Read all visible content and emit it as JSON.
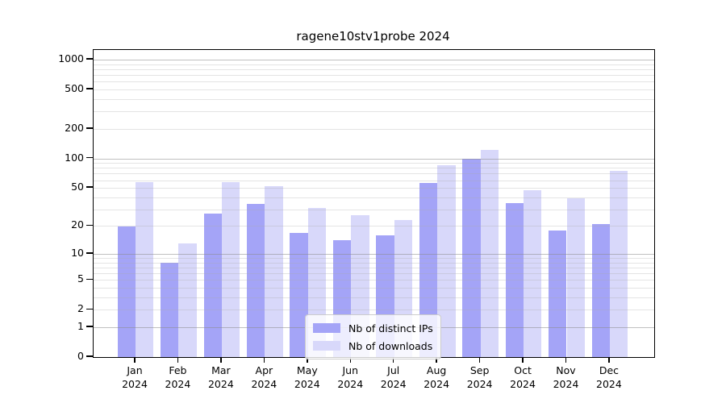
{
  "title": "ragene10stv1probe 2024",
  "chart_data": {
    "type": "bar",
    "title": "ragene10stv1probe 2024",
    "categories": [
      "Jan",
      "Feb",
      "Mar",
      "Apr",
      "May",
      "Jun",
      "Jul",
      "Aug",
      "Sep",
      "Oct",
      "Nov",
      "Dec"
    ],
    "x_year_label": "2024",
    "series": [
      {
        "name": "Nb of distinct IPs",
        "color": "#a4a4f7",
        "values": [
          20,
          8,
          27,
          34,
          17,
          14,
          16,
          56,
          100,
          35,
          18,
          21
        ]
      },
      {
        "name": "Nb of downloads",
        "color": "#d8d8fa",
        "values": [
          57,
          13,
          57,
          52,
          31,
          26,
          23,
          85,
          123,
          47,
          39,
          75
        ]
      }
    ],
    "y_axis": {
      "scale": "log10(value+1)",
      "ticks": [
        0,
        1,
        2,
        5,
        10,
        20,
        50,
        100,
        200,
        500,
        1000
      ],
      "ylim": [
        0,
        1258
      ],
      "minor_gridlines": "2-9, 20-90, 200-900",
      "major_gridlines": [
        1,
        10,
        100,
        1000
      ]
    },
    "legend_position": "lower center inside plot",
    "grid": true,
    "colors": {
      "axis": "#000000",
      "grid_major": "#c6c6c6",
      "grid_minor": "#e7e7e7",
      "background": "#ffffff"
    }
  }
}
